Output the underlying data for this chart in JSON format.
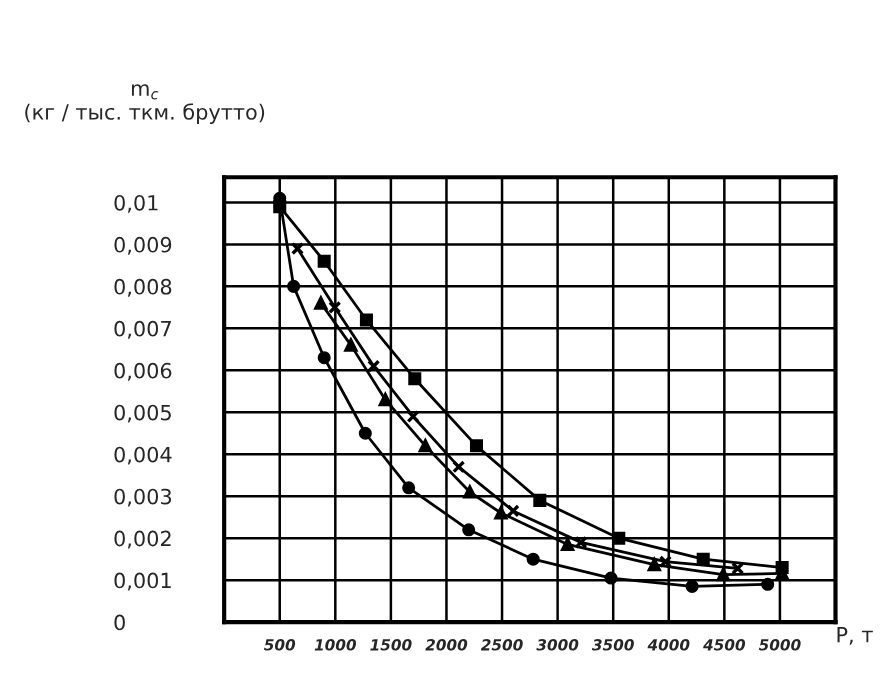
{
  "chart_data": {
    "type": "line",
    "ylabel": "m$_{c}$\n(кг / тыс. ткм. брутто)",
    "xlabel": "P, т",
    "series": [
      {
        "color": "#000000",
        "marker": "circle",
        "x": [
          500,
          625,
          900,
          1270,
          1660,
          2200,
          2780,
          3480,
          4210,
          4890
        ],
        "values": [
          0.0101,
          0.008,
          0.0063,
          0.0045,
          0.0032,
          0.0022,
          0.0015,
          0.00105,
          0.00085,
          0.0009
        ]
      },
      {
        "color": "#000000",
        "marker": "triangle",
        "x": [
          870,
          1140,
          1450,
          1810,
          2210,
          2490,
          3090,
          3870,
          4490,
          5020
        ],
        "values": [
          0.0076,
          0.0066,
          0.0053,
          0.0042,
          0.0031,
          0.0026,
          0.00185,
          0.00137,
          0.00113,
          0.00116
        ]
      },
      {
        "color": "#000000",
        "marker": "cross",
        "x": [
          660,
          995,
          1345,
          1700,
          2110,
          2600,
          3210,
          3970,
          4620
        ],
        "values": [
          0.0089,
          0.0075,
          0.0061,
          0.0049,
          0.0037,
          0.00265,
          0.0019,
          0.00144,
          0.00128
        ]
      },
      {
        "color": "#000000",
        "marker": "square",
        "x": [
          500,
          900,
          1280,
          1715,
          2270,
          2840,
          3550,
          4310,
          5020
        ],
        "values": [
          0.0099,
          0.0086,
          0.0072,
          0.0058,
          0.0042,
          0.0029,
          0.002,
          0.0015,
          0.0013
        ]
      }
    ],
    "xlim": [
      0,
      5500
    ],
    "ylim": [
      0,
      0.0106
    ],
    "xticks": [
      500,
      1000,
      1500,
      2000,
      2500,
      3000,
      3500,
      4000,
      4500,
      5000
    ],
    "yticks": [
      {
        "value": 0,
        "label": "0"
      },
      {
        "value": 0.001,
        "label": "0,001"
      },
      {
        "value": 0.002,
        "label": "0,002"
      },
      {
        "value": 0.003,
        "label": "0,003"
      },
      {
        "value": 0.004,
        "label": "0,004"
      },
      {
        "value": 0.005,
        "label": "0,005"
      },
      {
        "value": 0.006,
        "label": "0,006"
      },
      {
        "value": 0.007,
        "label": "0,007"
      },
      {
        "value": 0.008,
        "label": "0,008"
      },
      {
        "value": 0.009,
        "label": "0,009"
      },
      {
        "value": 0.01,
        "label": "0,01"
      }
    ],
    "grid": true,
    "line_style": "solid"
  }
}
